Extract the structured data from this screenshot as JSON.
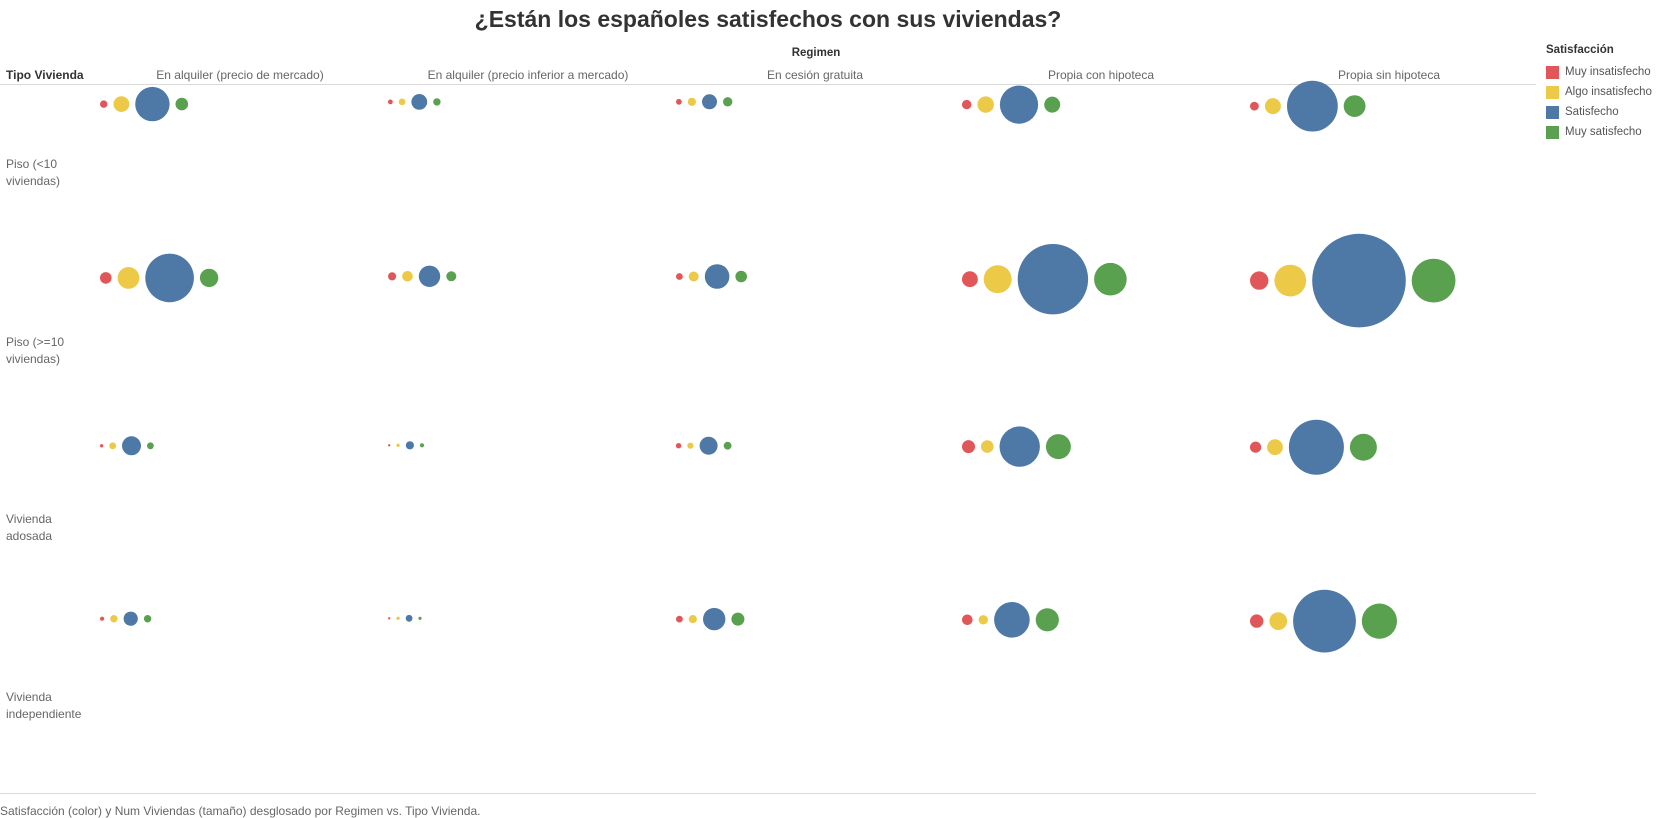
{
  "title": "¿Están los españoles satisfechos con sus viviendas?",
  "row_dimension_label": "Tipo Vivienda",
  "column_group_label": "Regimen",
  "caption": "Satisfacción (color) y Num Viviendas (tamaño) desglosado por Regimen vs. Tipo Vivienda.",
  "legend": {
    "title": "Satisfacción",
    "items": [
      {
        "label": "Muy insatisfecho",
        "color": "#e15759"
      },
      {
        "label": "Algo insatisfecho",
        "color": "#edc948"
      },
      {
        "label": "Satisfecho",
        "color": "#4e79a7"
      },
      {
        "label": "Muy satisfecho",
        "color": "#59a14f"
      }
    ]
  },
  "chart_data": {
    "type": "scatter",
    "encoding": "bubble size = Num Viviendas, color = Satisfacción",
    "columns": [
      "En alquiler (precio de mercado)",
      "En alquiler (precio inferior a mercado)",
      "En cesión gratuita",
      "Propia con hipoteca",
      "Propia sin hipoteca"
    ],
    "rows": [
      "Piso (<10 viviendas)",
      "Piso (>=10 viviendas)",
      "Vivienda adosada",
      "Vivienda independiente"
    ],
    "series_order": [
      "Muy insatisfecho",
      "Algo insatisfecho",
      "Satisfecho",
      "Muy satisfecho"
    ],
    "relative_size": [
      [
        [
          50,
          220,
          1050,
          140
        ],
        [
          20,
          40,
          220,
          50
        ],
        [
          30,
          60,
          200,
          80
        ],
        [
          80,
          240,
          1300,
          230
        ],
        [
          70,
          230,
          2300,
          420
        ]
      ],
      [
        [
          120,
          420,
          2100,
          300
        ],
        [
          60,
          100,
          410,
          90
        ],
        [
          40,
          90,
          540,
          120
        ],
        [
          220,
          700,
          4400,
          950
        ],
        [
          300,
          900,
          7800,
          1700
        ]
      ],
      [
        [
          10,
          40,
          320,
          40
        ],
        [
          5,
          10,
          60,
          15
        ],
        [
          25,
          35,
          290,
          55
        ],
        [
          150,
          140,
          1450,
          560
        ],
        [
          110,
          220,
          2700,
          650
        ]
      ],
      [
        [
          15,
          50,
          180,
          50
        ],
        [
          4,
          10,
          40,
          9
        ],
        [
          40,
          60,
          450,
          150
        ],
        [
          100,
          80,
          1130,
          480
        ],
        [
          160,
          280,
          3500,
          1100
        ]
      ]
    ]
  }
}
